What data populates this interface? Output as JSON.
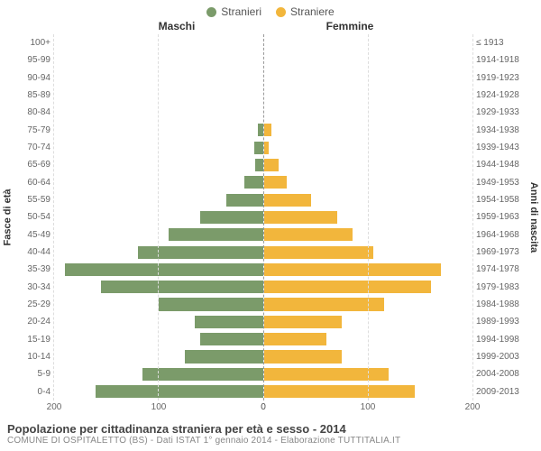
{
  "type": "population-pyramid",
  "legend": [
    {
      "label": "Stranieri",
      "color": "#7b9b6a"
    },
    {
      "label": "Straniere",
      "color": "#f2b63c"
    }
  ],
  "columns": {
    "left": "Maschi",
    "right": "Femmine"
  },
  "y_axis_left_title": "Fasce di età",
  "y_axis_right_title": "Anni di nascita",
  "bar_colors": {
    "male": "#7b9b6a",
    "female": "#f2b63c"
  },
  "background": "#ffffff",
  "grid_color": "#dddddd",
  "center_line_color": "#999999",
  "x_max": 200,
  "x_ticks": [
    0,
    100,
    200
  ],
  "age_groups": [
    {
      "age": "100+",
      "birth": "≤ 1913",
      "m": 0,
      "f": 0
    },
    {
      "age": "95-99",
      "birth": "1914-1918",
      "m": 0,
      "f": 0
    },
    {
      "age": "90-94",
      "birth": "1919-1923",
      "m": 0,
      "f": 0
    },
    {
      "age": "85-89",
      "birth": "1924-1928",
      "m": 0,
      "f": 0
    },
    {
      "age": "80-84",
      "birth": "1929-1933",
      "m": 0,
      "f": 0
    },
    {
      "age": "75-79",
      "birth": "1934-1938",
      "m": 5,
      "f": 7
    },
    {
      "age": "70-74",
      "birth": "1939-1943",
      "m": 8,
      "f": 5
    },
    {
      "age": "65-69",
      "birth": "1944-1948",
      "m": 7,
      "f": 14
    },
    {
      "age": "60-64",
      "birth": "1949-1953",
      "m": 18,
      "f": 22
    },
    {
      "age": "55-59",
      "birth": "1954-1958",
      "m": 35,
      "f": 45
    },
    {
      "age": "50-54",
      "birth": "1959-1963",
      "m": 60,
      "f": 70
    },
    {
      "age": "45-49",
      "birth": "1964-1968",
      "m": 90,
      "f": 85
    },
    {
      "age": "40-44",
      "birth": "1969-1973",
      "m": 120,
      "f": 105
    },
    {
      "age": "35-39",
      "birth": "1974-1978",
      "m": 190,
      "f": 170
    },
    {
      "age": "30-34",
      "birth": "1979-1983",
      "m": 155,
      "f": 160
    },
    {
      "age": "25-29",
      "birth": "1984-1988",
      "m": 100,
      "f": 115
    },
    {
      "age": "20-24",
      "birth": "1989-1993",
      "m": 65,
      "f": 75
    },
    {
      "age": "15-19",
      "birth": "1994-1998",
      "m": 60,
      "f": 60
    },
    {
      "age": "10-14",
      "birth": "1999-2003",
      "m": 75,
      "f": 75
    },
    {
      "age": "5-9",
      "birth": "2004-2008",
      "m": 115,
      "f": 120
    },
    {
      "age": "0-4",
      "birth": "2009-2013",
      "m": 160,
      "f": 145
    }
  ],
  "title": "Popolazione per cittadinanza straniera per età e sesso - 2014",
  "subtitle": "COMUNE DI OSPITALETTO (BS) - Dati ISTAT 1° gennaio 2014 - Elaborazione TUTTITALIA.IT"
}
